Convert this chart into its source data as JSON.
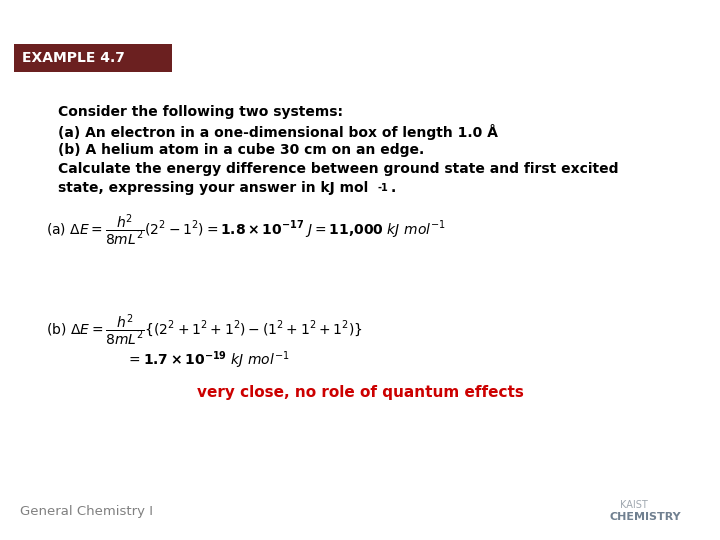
{
  "background_color": "#ffffff",
  "header_bg_color": "#6b2020",
  "header_text": "EXAMPLE 4.7",
  "header_text_color": "#ffffff",
  "header_font_size": 10,
  "body_text_color": "#000000",
  "body_font_size": 10,
  "intro_text_line1": "Consider the following two systems:",
  "intro_text_line2": "(a) An electron in a one-dimensional box of length 1.0 Å",
  "intro_text_line3": "(b) A helium atom in a cube 30 cm on an edge.",
  "intro_text_line4": "Calculate the energy difference between ground state and first excited",
  "intro_text_line5": "state, expressing your answer in kJ mol",
  "red_text": "very close, no role of quantum effects",
  "red_color": "#cc0000",
  "footer_left": "General Chemistry I",
  "footer_color": "#808080"
}
